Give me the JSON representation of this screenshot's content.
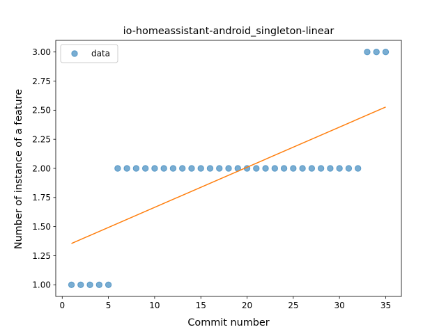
{
  "chart_data": {
    "type": "scatter",
    "title": "io-homeassistant-android_singleton-linear",
    "xlabel": "Commit number",
    "ylabel": "Number of instance of a feature",
    "xlim": [
      -0.7,
      36.7
    ],
    "ylim": [
      0.9,
      3.1
    ],
    "xticks": [
      0,
      5,
      10,
      15,
      20,
      25,
      30,
      35
    ],
    "yticks": [
      1.0,
      1.25,
      1.5,
      1.75,
      2.0,
      2.25,
      2.5,
      2.75,
      3.0
    ],
    "xtick_labels": [
      "0",
      "5",
      "10",
      "15",
      "20",
      "25",
      "30",
      "35"
    ],
    "ytick_labels": [
      "1.00",
      "1.25",
      "1.50",
      "1.75",
      "2.00",
      "2.25",
      "2.50",
      "2.75",
      "3.00"
    ],
    "legend_placement": "top-left",
    "grid": false,
    "series": [
      {
        "name": "data",
        "kind": "scatter",
        "color": "#1f77b4",
        "x": [
          1,
          2,
          3,
          4,
          5,
          6,
          7,
          8,
          9,
          10,
          11,
          12,
          13,
          14,
          15,
          16,
          17,
          18,
          19,
          20,
          21,
          22,
          23,
          24,
          25,
          26,
          27,
          28,
          29,
          30,
          31,
          32,
          33,
          34,
          35
        ],
        "y": [
          1,
          1,
          1,
          1,
          1,
          2,
          2,
          2,
          2,
          2,
          2,
          2,
          2,
          2,
          2,
          2,
          2,
          2,
          2,
          2,
          2,
          2,
          2,
          2,
          2,
          2,
          2,
          2,
          2,
          2,
          2,
          2,
          3,
          3,
          3
        ]
      },
      {
        "kind": "line",
        "color": "#ff7f0e",
        "x": [
          1,
          35
        ],
        "y": [
          1.355,
          2.527
        ]
      }
    ]
  }
}
